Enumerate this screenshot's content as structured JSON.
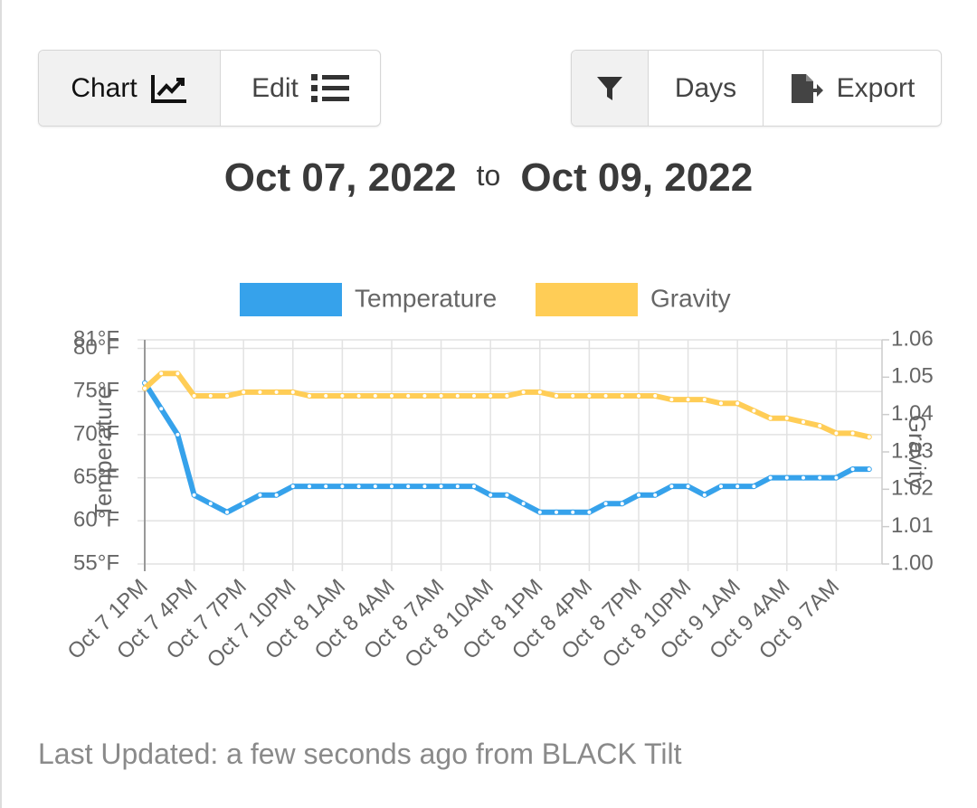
{
  "toolbar": {
    "left": [
      "Chart",
      "Edit"
    ],
    "right": [
      "Days",
      "Export"
    ]
  },
  "date_range": {
    "start": "Oct 07, 2022",
    "separator": "to",
    "end": "Oct 09, 2022"
  },
  "chart_data": {
    "type": "line",
    "categories": [
      "Oct 7 1PM",
      null,
      null,
      "Oct 7 4PM",
      null,
      null,
      "Oct 7 7PM",
      null,
      null,
      "Oct 7 10PM",
      null,
      null,
      "Oct 8 1AM",
      null,
      null,
      "Oct 8 4AM",
      null,
      null,
      "Oct 8 7AM",
      null,
      null,
      "Oct 8 10AM",
      null,
      null,
      "Oct 8 1PM",
      null,
      null,
      "Oct 8 4PM",
      null,
      null,
      "Oct 8 7PM",
      null,
      null,
      "Oct 8 10PM",
      null,
      null,
      "Oct 9 1AM",
      null,
      null,
      "Oct 9 4AM",
      null,
      null,
      "Oct 9 7AM",
      null,
      null
    ],
    "series": [
      {
        "name": "Temperature",
        "color": "#36a2eb",
        "values": [
          76,
          73,
          70,
          63,
          62,
          61,
          62,
          63,
          63,
          64,
          64,
          64,
          64,
          64,
          64,
          64,
          64,
          64,
          64,
          64,
          64,
          63,
          63,
          62,
          61,
          61,
          61,
          61,
          62,
          62,
          63,
          63,
          64,
          64,
          63,
          64,
          64,
          64,
          65,
          65,
          65,
          65,
          65,
          66,
          66
        ]
      },
      {
        "name": "Gravity",
        "color": "#ffcd56",
        "axis": "y2",
        "values": [
          1.047,
          1.051,
          1.051,
          1.045,
          1.045,
          1.045,
          1.046,
          1.046,
          1.046,
          1.046,
          1.045,
          1.045,
          1.045,
          1.045,
          1.045,
          1.045,
          1.045,
          1.045,
          1.045,
          1.045,
          1.045,
          1.045,
          1.045,
          1.046,
          1.046,
          1.045,
          1.045,
          1.045,
          1.045,
          1.045,
          1.045,
          1.045,
          1.044,
          1.044,
          1.044,
          1.043,
          1.043,
          1.041,
          1.039,
          1.039,
          1.038,
          1.037,
          1.035,
          1.035,
          1.034
        ]
      }
    ],
    "y_label": "Temperature",
    "y2_label": "Gravity",
    "ylim": [
      55,
      81
    ],
    "yticks": [
      {
        "value": 55,
        "label": "55°F"
      },
      {
        "value": 60,
        "label": "60°F"
      },
      {
        "value": 65,
        "label": "65°F"
      },
      {
        "value": 70,
        "label": "70°F"
      },
      {
        "value": 75,
        "label": "75°F"
      },
      {
        "value": 80,
        "label": "80°F"
      },
      {
        "value": 81,
        "label": "81°F"
      }
    ],
    "y2lim": [
      1,
      1.06
    ],
    "y2ticks": [
      {
        "value": 1,
        "label": "1.00"
      },
      1.01,
      1.02,
      1.03,
      1.04,
      1.05,
      1.06
    ],
    "grid": true,
    "legend": "top"
  },
  "footer": "Last Updated: a few seconds ago from BLACK Tilt"
}
